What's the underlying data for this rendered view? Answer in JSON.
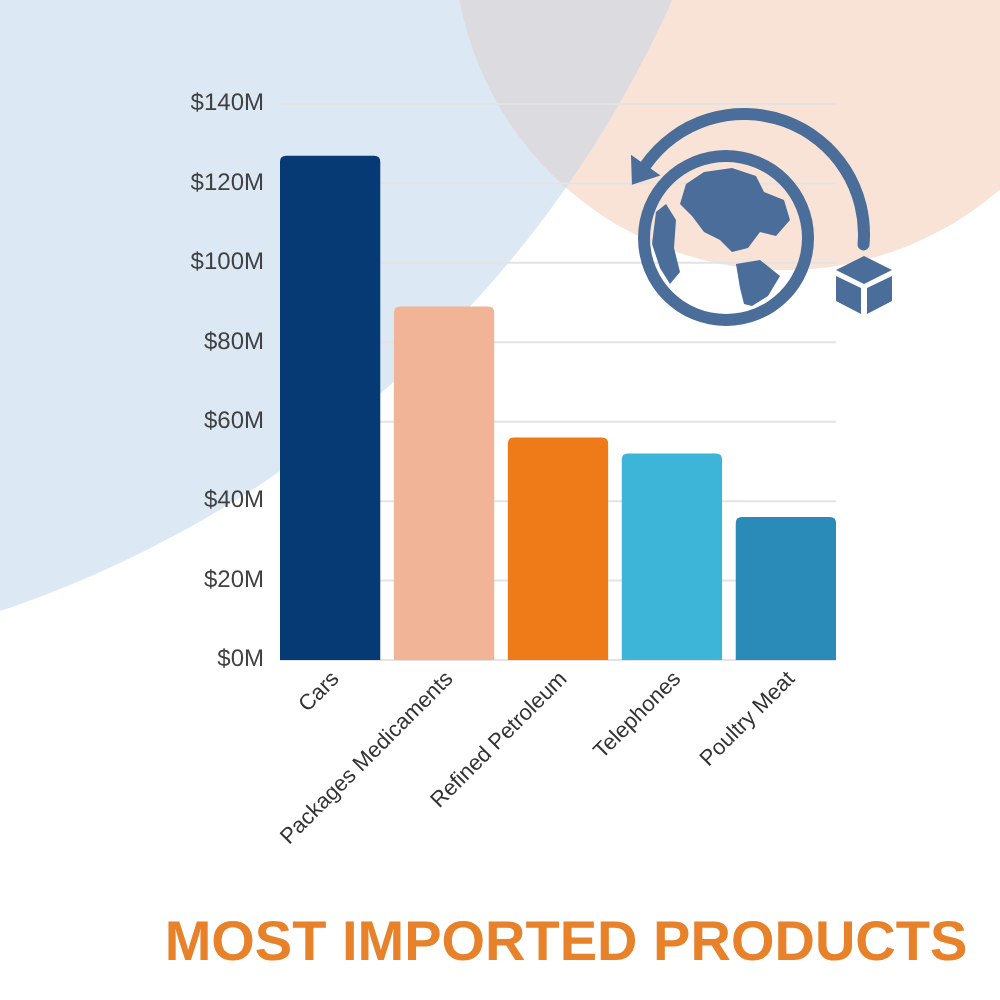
{
  "chart_data": {
    "type": "bar",
    "title": "MOST IMPORTED PRODUCTS",
    "categories": [
      "Cars",
      "Packages Medicaments",
      "Refined Petroleum",
      "Telephones",
      "Poultry Meat"
    ],
    "values": [
      127,
      89,
      56,
      52,
      36
    ],
    "colors": [
      "#063a75",
      "#f2b496",
      "#ee7b17",
      "#3db5d8",
      "#2a8ab8"
    ],
    "ylim": [
      0,
      140
    ],
    "yticks": [
      {
        "value": 0,
        "label": "$0M"
      },
      {
        "value": 20,
        "label": "$20M"
      },
      {
        "value": 40,
        "label": "$40M"
      },
      {
        "value": 60,
        "label": "$60M"
      },
      {
        "value": 80,
        "label": "$80M"
      },
      {
        "value": 100,
        "label": "$100M"
      },
      {
        "value": 120,
        "label": "$120M"
      },
      {
        "value": 140,
        "label": "$140M"
      }
    ],
    "grid": "y"
  }
}
